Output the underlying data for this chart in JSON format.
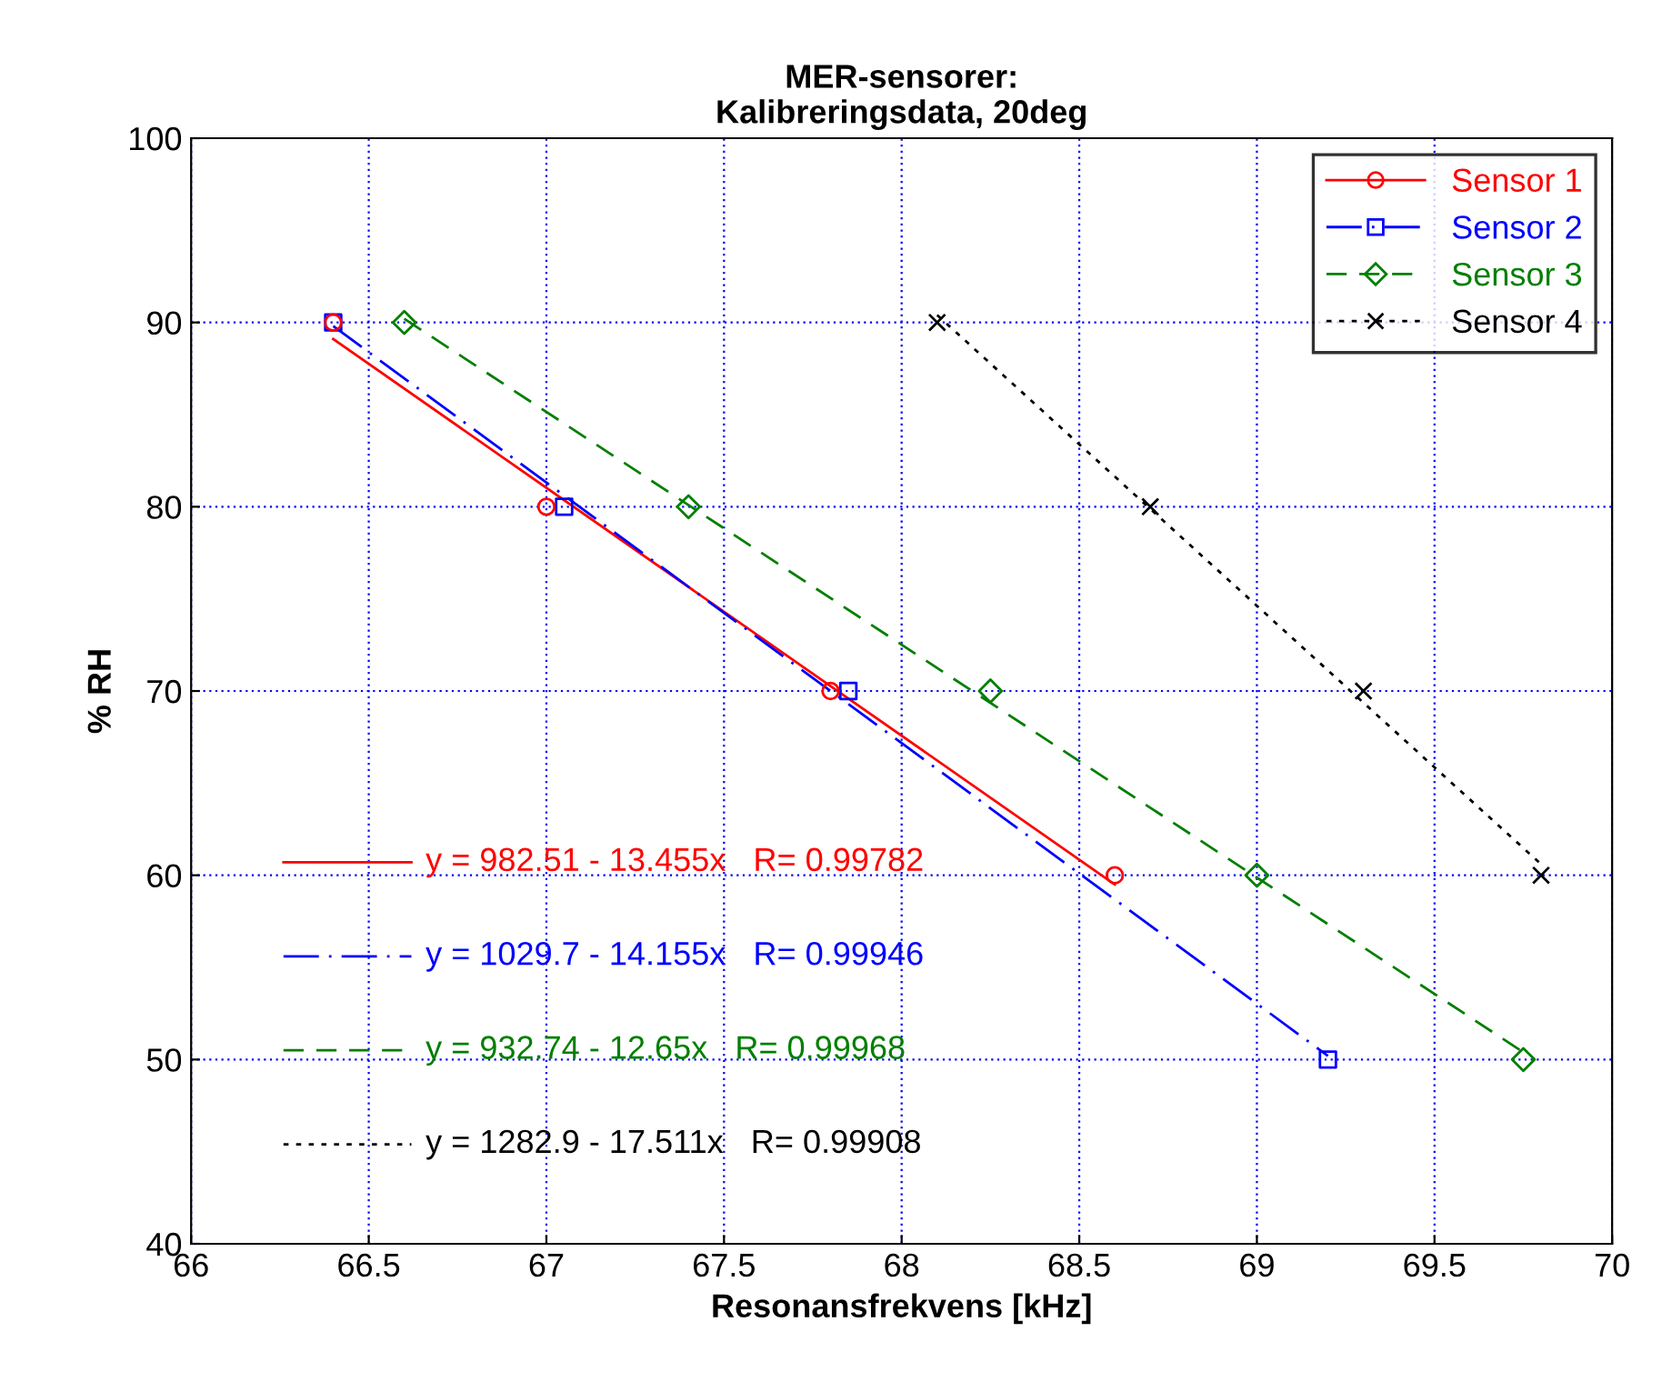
{
  "chart_data": {
    "type": "scatter",
    "title": "MER-sensorer:\nKalibreringsdata, 20deg",
    "xlabel": "Resonansfrekvens [kHz]",
    "ylabel": "% RH",
    "xlim": [
      66,
      70
    ],
    "xticks": [
      66,
      66.5,
      67,
      67.5,
      68,
      68.5,
      69,
      69.5,
      70
    ],
    "ylim": [
      40,
      100
    ],
    "yticks": [
      40,
      50,
      60,
      70,
      80,
      90,
      100
    ],
    "grid": true,
    "legend": "top right",
    "series": [
      {
        "name": "Sensor 1",
        "color": "#ff0000",
        "marker": "circle",
        "line_style": "solid",
        "x": [
          66.4,
          67.0,
          67.8,
          68.6
        ],
        "values": [
          90,
          80,
          70,
          60
        ]
      },
      {
        "name": "Sensor 2",
        "color": "#0000ff",
        "marker": "square",
        "line_style": "dashdot",
        "x": [
          66.4,
          67.05,
          67.85,
          69.2
        ],
        "values": [
          90,
          80,
          70,
          50
        ]
      },
      {
        "name": "Sensor 3",
        "color": "#007f00",
        "marker": "diamond",
        "line_style": "dashed",
        "x": [
          66.6,
          67.4,
          68.25,
          69.0,
          69.75
        ],
        "values": [
          90,
          80,
          70,
          60,
          50
        ]
      },
      {
        "name": "Sensor 4",
        "color": "#000000",
        "marker": "cross",
        "line_style": "dotted",
        "x": [
          68.1,
          68.7,
          69.3,
          69.8
        ],
        "values": [
          90,
          80,
          70,
          60
        ]
      },
      {
        "type": "line",
        "color": "#ff0000",
        "line_style": "solid",
        "x": [
          66.4,
          68.6
        ],
        "values": [
          89.1,
          59.5
        ]
      },
      {
        "type": "line",
        "color": "#0000ff",
        "line_style": "dashdot",
        "x": [
          66.4,
          69.2
        ],
        "values": [
          89.8,
          50.2
        ]
      },
      {
        "type": "line",
        "color": "#007f00",
        "line_style": "dashed",
        "x": [
          66.6,
          69.75
        ],
        "values": [
          90.2,
          50.4
        ]
      },
      {
        "type": "line",
        "color": "#000000",
        "line_style": "dotted",
        "x": [
          68.1,
          69.8
        ],
        "values": [
          90.4,
          60.6
        ]
      }
    ],
    "annotations": [
      "y = 982.51 - 13.455x   R= 0.99782",
      "y = 1029.7 - 14.155x   R= 0.99946",
      "y = 932.74 - 12.65x   R= 0.99968",
      "y = 1282.9 - 17.511x   R= 0.99908"
    ]
  }
}
